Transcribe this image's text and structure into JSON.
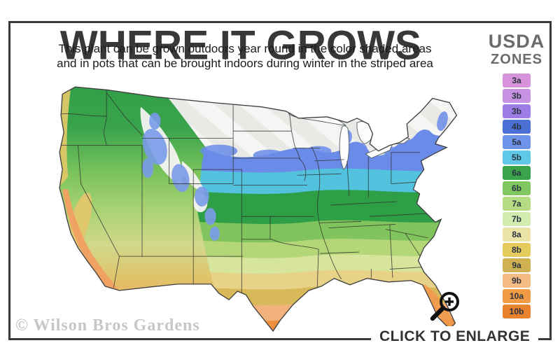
{
  "header": {
    "title": "WHERE IT GROWS",
    "subtitle_line1": "This plant can be grown outdoors year round in the color shaded areas",
    "subtitle_line2": "and in pots that can be brought indoors during winter in the striped area"
  },
  "legend": {
    "title_line1": "USDA",
    "title_line2": "ZONES",
    "zones": [
      {
        "label": "3a",
        "color": "#d693dc"
      },
      {
        "label": "3b",
        "color": "#c792e2"
      },
      {
        "label": "3b",
        "color": "#9e7ce8"
      },
      {
        "label": "4b",
        "color": "#4b70d6"
      },
      {
        "label": "5a",
        "color": "#6e93ea"
      },
      {
        "label": "5b",
        "color": "#5fc8e6"
      },
      {
        "label": "6a",
        "color": "#3aa34c"
      },
      {
        "label": "6b",
        "color": "#80c75f"
      },
      {
        "label": "7a",
        "color": "#b6dc83"
      },
      {
        "label": "7b",
        "color": "#d2ecb0"
      },
      {
        "label": "8a",
        "color": "#ece4a7"
      },
      {
        "label": "8b",
        "color": "#e5ca5e"
      },
      {
        "label": "9a",
        "color": "#d0b152"
      },
      {
        "label": "9b",
        "color": "#f4bc83"
      },
      {
        "label": "10a",
        "color": "#f19a45"
      },
      {
        "label": "10b",
        "color": "#e8822c"
      }
    ]
  },
  "map": {
    "band_colors": [
      "#ec8f3e",
      "#f2b27c",
      "#d8b95a",
      "#e7d287",
      "#d6e49c",
      "#b3d677",
      "#81c35c",
      "#2f9f47",
      "#53c2de",
      "#6a8ce8",
      "#f3f3f1"
    ],
    "stripe_color_a": "#f5f5f3",
    "stripe_color_b": "#e9e9e6",
    "state_border_color": "#2f2f2f",
    "outline_color": "#3f3f3f"
  },
  "footer": {
    "watermark": "© Wilson Bros Gardens",
    "enlarge_label": "CLICK TO ENLARGE",
    "enlarge_icon": "magnifier-plus"
  },
  "frame_color": "#3b3b3b"
}
